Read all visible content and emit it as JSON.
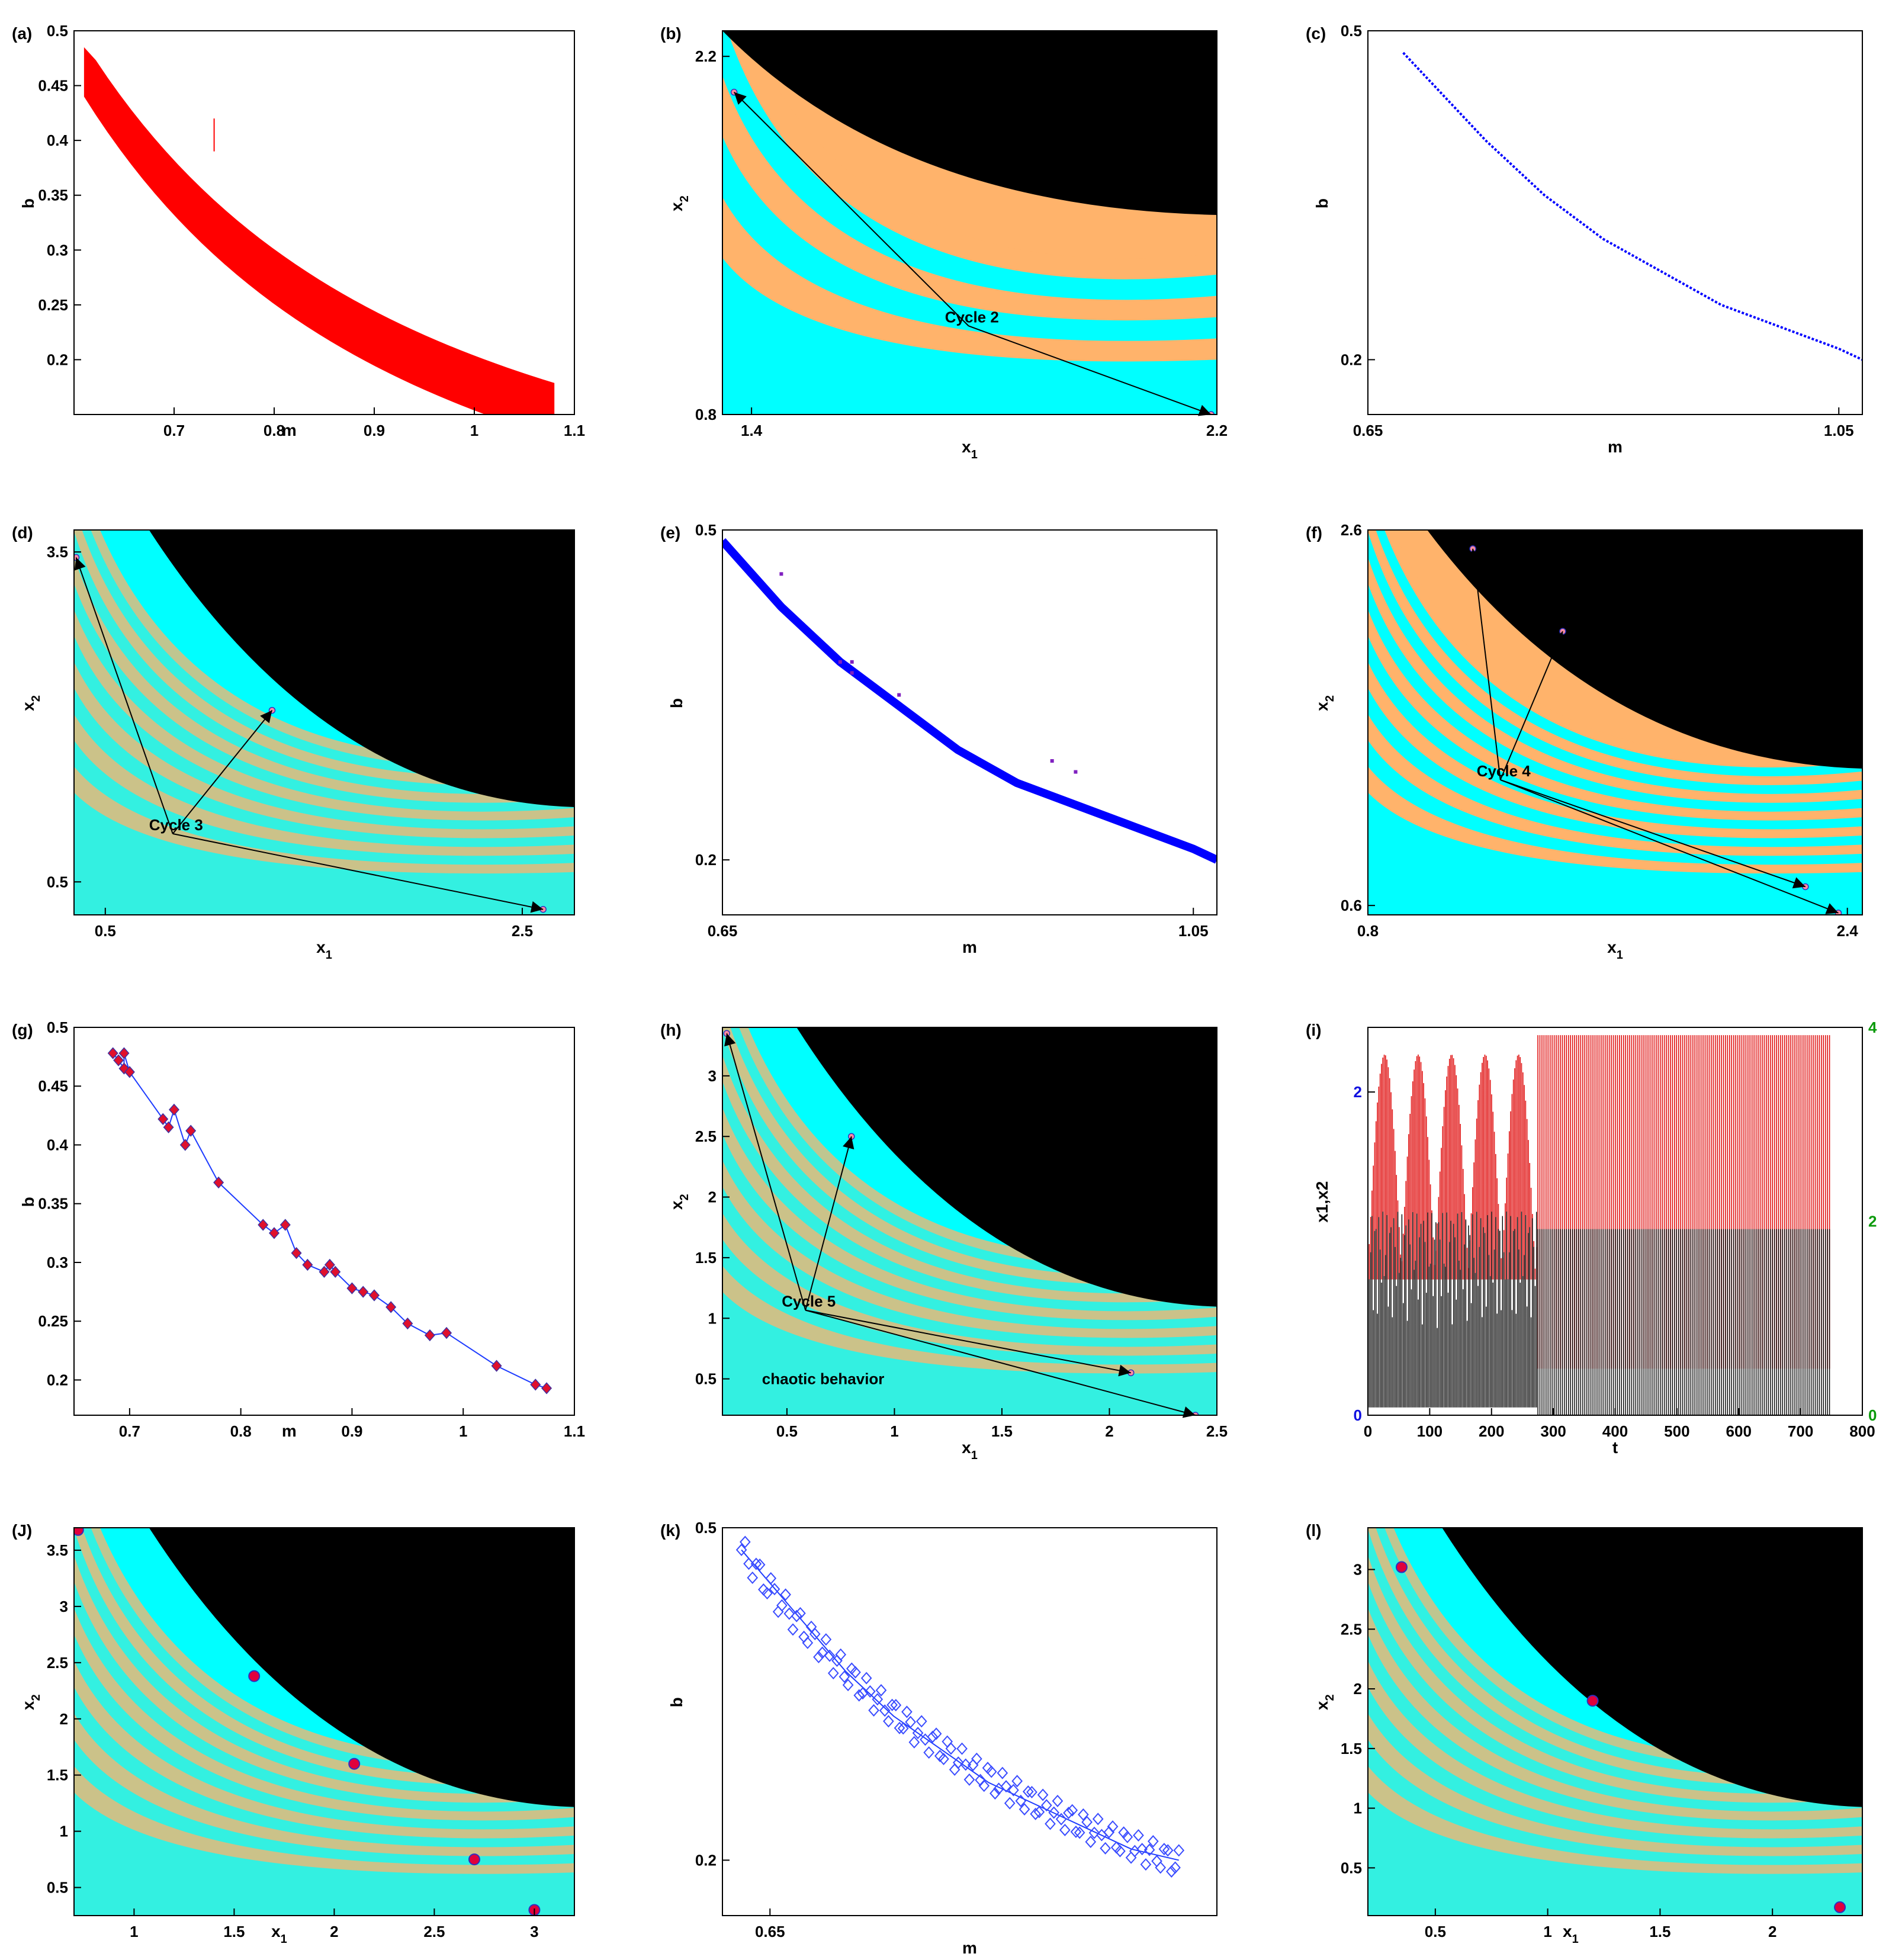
{
  "figure": {
    "panels": [
      {
        "id": "a",
        "tag": "(a)",
        "type": "region",
        "xlabel": "m",
        "ylabel": "b",
        "xticks": [
          "0.7",
          "0.8",
          "0.9",
          "1",
          "1.1"
        ],
        "xtickvals": [
          0.7,
          0.8,
          0.9,
          1,
          1.1
        ],
        "yticks": [
          "0.2",
          "0.25",
          "0.3",
          "0.35",
          "0.4",
          "0.45",
          "0.5"
        ],
        "ytickvals": [
          0.2,
          0.25,
          0.3,
          0.35,
          0.4,
          0.45,
          0.5
        ],
        "xlim": [
          0.6,
          1.1
        ],
        "ylim": [
          0.15,
          0.5
        ],
        "color": "#ff0000"
      },
      {
        "id": "b",
        "tag": "(b)",
        "type": "basin",
        "xlabel": "x1",
        "ylabel": "x2",
        "xticks": [
          "1.4",
          "2.2"
        ],
        "xtickvals": [
          1.4,
          2.2
        ],
        "yticks": [
          "0.8",
          "2.2"
        ],
        "ytickvals": [
          0.8,
          2.2
        ],
        "xlim": [
          1.35,
          2.2
        ],
        "ylim": [
          0.8,
          2.3
        ],
        "annotation": "Cycle 2",
        "points": [
          [
            1.37,
            2.06
          ],
          [
            2.19,
            0.8
          ]
        ]
      },
      {
        "id": "c",
        "tag": "(c)",
        "type": "curve",
        "xlabel": "m",
        "ylabel": "b",
        "xticks": [
          "0.65",
          "1.05"
        ],
        "xtickvals": [
          0.65,
          1.05
        ],
        "yticks": [
          "0.2",
          "0.5"
        ],
        "ytickvals": [
          0.2,
          0.5
        ],
        "xlim": [
          0.65,
          1.07
        ],
        "ylim": [
          0.15,
          0.5
        ],
        "color": "#0000ff"
      },
      {
        "id": "d",
        "tag": "(d)",
        "type": "basin",
        "xlabel": "x1",
        "ylabel": "x2",
        "xticks": [
          "0.5",
          "2.5"
        ],
        "xtickvals": [
          0.5,
          2.5
        ],
        "yticks": [
          "0.5",
          "3.5"
        ],
        "ytickvals": [
          0.5,
          3.5
        ],
        "xlim": [
          0.35,
          2.75
        ],
        "ylim": [
          0.2,
          3.7
        ],
        "annotation": "Cycle 3",
        "points": [
          [
            0.36,
            3.45
          ],
          [
            1.3,
            2.06
          ],
          [
            2.6,
            0.25
          ]
        ]
      },
      {
        "id": "e",
        "tag": "(e)",
        "type": "curve",
        "xlabel": "m",
        "ylabel": "b",
        "xticks": [
          "0.65",
          "1.05"
        ],
        "xtickvals": [
          0.65,
          1.05
        ],
        "yticks": [
          "0.2",
          "0.5"
        ],
        "ytickvals": [
          0.2,
          0.5
        ],
        "xlim": [
          0.65,
          1.07
        ],
        "ylim": [
          0.15,
          0.5
        ],
        "color": "#0000ff"
      },
      {
        "id": "f",
        "tag": "(f)",
        "type": "basin",
        "xlabel": "x1",
        "ylabel": "x2",
        "xticks": [
          "0.8",
          "2.4"
        ],
        "xtickvals": [
          0.8,
          2.4
        ],
        "yticks": [
          "0.6",
          "2.6"
        ],
        "ytickvals": [
          0.6,
          2.6
        ],
        "xlim": [
          0.8,
          2.45
        ],
        "ylim": [
          0.55,
          2.6
        ],
        "annotation": "Cycle 4",
        "points": [
          [
            1.15,
            2.5
          ],
          [
            1.45,
            2.06
          ],
          [
            2.26,
            0.7
          ],
          [
            2.37,
            0.56
          ]
        ]
      },
      {
        "id": "g",
        "tag": "(g)",
        "type": "markers",
        "xlabel": "m",
        "ylabel": "b",
        "xticks": [
          "0.7",
          "0.8",
          "0.9",
          "1",
          "1.1"
        ],
        "xtickvals": [
          0.7,
          0.8,
          0.9,
          1,
          1.1
        ],
        "yticks": [
          "0.2",
          "0.25",
          "0.3",
          "0.35",
          "0.4",
          "0.45",
          "0.5"
        ],
        "ytickvals": [
          0.2,
          0.25,
          0.3,
          0.35,
          0.4,
          0.45,
          0.5
        ],
        "xlim": [
          0.65,
          1.1
        ],
        "ylim": [
          0.17,
          0.5
        ]
      },
      {
        "id": "h",
        "tag": "(h)",
        "type": "basin",
        "xlabel": "x1",
        "ylabel": "x2",
        "xticks": [
          "0.5",
          "1",
          "1.5",
          "2",
          "2.5"
        ],
        "xtickvals": [
          0.5,
          1,
          1.5,
          2,
          2.5
        ],
        "yticks": [
          "0.5",
          "1",
          "1.5",
          "2",
          "2.5",
          "3"
        ],
        "ytickvals": [
          0.5,
          1,
          1.5,
          2,
          2.5,
          3
        ],
        "xlim": [
          0.2,
          2.5
        ],
        "ylim": [
          0.2,
          3.4
        ],
        "annotation": "Cycle 5",
        "annotation2": "chaotic behavior",
        "points": [
          [
            0.22,
            3.35
          ],
          [
            0.8,
            2.5
          ],
          [
            2.1,
            0.55
          ],
          [
            2.4,
            0.2
          ]
        ]
      },
      {
        "id": "i",
        "tag": "(i)",
        "type": "timeseries",
        "xlabel": "t",
        "ylabel": "x1,x2",
        "xticks": [
          "0",
          "100",
          "200",
          "300",
          "400",
          "500",
          "600",
          "700",
          "800"
        ],
        "xtickvals": [
          0,
          100,
          200,
          300,
          400,
          500,
          600,
          700,
          800
        ],
        "yticks": [
          "0",
          "2"
        ],
        "ytickvals": [
          0,
          2
        ],
        "y2ticks": [
          "0",
          "2",
          "4"
        ],
        "y2tickvals": [
          0,
          2,
          4
        ],
        "xlim": [
          0,
          800
        ],
        "ylim": [
          0,
          2.4
        ],
        "y2lim": [
          0,
          4
        ]
      },
      {
        "id": "J",
        "tag": "(J)",
        "type": "basin",
        "xlabel": "x1",
        "ylabel": "x2",
        "xticks": [
          "1",
          "1.5",
          "2",
          "2.5",
          "3"
        ],
        "xtickvals": [
          1,
          1.5,
          2,
          2.5,
          3
        ],
        "yticks": [
          "0.5",
          "1",
          "1.5",
          "2",
          "2.5",
          "3",
          "3.5"
        ],
        "ytickvals": [
          0.5,
          1,
          1.5,
          2,
          2.5,
          3,
          3.5
        ],
        "xlim": [
          0.7,
          3.2
        ],
        "ylim": [
          0.25,
          3.7
        ],
        "points": [
          [
            0.72,
            3.68
          ],
          [
            1.6,
            2.38
          ],
          [
            2.1,
            1.6
          ],
          [
            2.7,
            0.75
          ],
          [
            3.0,
            0.3
          ]
        ]
      },
      {
        "id": "k",
        "tag": "(k)",
        "type": "diamonds",
        "xlabel": "m",
        "ylabel": "b",
        "xticks": [
          "0.65"
        ],
        "xtickvals": [
          0.65
        ],
        "yticks": [
          "0.2",
          "0.5"
        ],
        "ytickvals": [
          0.2,
          0.5
        ],
        "xlim": [
          0.6,
          1.12
        ],
        "ylim": [
          0.15,
          0.5
        ]
      },
      {
        "id": "l",
        "tag": "(l)",
        "type": "basin",
        "xlabel": "x1",
        "ylabel": "x2",
        "xticks": [
          "0.5",
          "1",
          "1.5",
          "2"
        ],
        "xtickvals": [
          0.5,
          1,
          1.5,
          2
        ],
        "yticks": [
          "0.5",
          "1",
          "1.5",
          "2",
          "2.5",
          "3"
        ],
        "ytickvals": [
          0.5,
          1,
          1.5,
          2,
          2.5,
          3
        ],
        "xlim": [
          0.2,
          2.4
        ],
        "ylim": [
          0.1,
          3.35
        ],
        "points": [
          [
            0.35,
            3.02
          ],
          [
            1.2,
            1.9
          ],
          [
            2.3,
            0.17
          ]
        ]
      }
    ]
  },
  "chart_data": [
    {
      "type": "scatter",
      "panel": "a",
      "title": "(a)",
      "xlabel": "m",
      "ylabel": "b",
      "series": [
        {
          "name": "region",
          "x": [
            0.61,
            0.65,
            0.7,
            0.75,
            0.8,
            0.85,
            0.9,
            0.95,
            1.0,
            1.05,
            1.08
          ],
          "y": [
            0.47,
            0.44,
            0.4,
            0.36,
            0.32,
            0.29,
            0.26,
            0.23,
            0.21,
            0.19,
            0.18
          ]
        }
      ]
    },
    {
      "type": "scatter",
      "panel": "c",
      "title": "(c)",
      "xlabel": "m",
      "ylabel": "b",
      "series": [
        {
          "name": "curve",
          "x": [
            0.68,
            0.75,
            0.8,
            0.85,
            0.9,
            0.95,
            1.0,
            1.05,
            1.07
          ],
          "y": [
            0.48,
            0.4,
            0.35,
            0.31,
            0.28,
            0.25,
            0.23,
            0.21,
            0.2
          ]
        }
      ]
    },
    {
      "type": "scatter",
      "panel": "e",
      "title": "(e)",
      "xlabel": "m",
      "ylabel": "b",
      "series": [
        {
          "name": "curve",
          "x": [
            0.65,
            0.7,
            0.75,
            0.8,
            0.85,
            0.9,
            0.95,
            1.0,
            1.05,
            1.07
          ],
          "y": [
            0.49,
            0.43,
            0.38,
            0.34,
            0.3,
            0.27,
            0.25,
            0.23,
            0.21,
            0.2
          ]
        },
        {
          "name": "outliers",
          "x": [
            0.7,
            0.75,
            0.76,
            0.76,
            0.8,
            0.93,
            0.95
          ],
          "y": [
            0.46,
            0.38,
            0.38,
            0.37,
            0.35,
            0.29,
            0.28
          ]
        }
      ]
    },
    {
      "type": "line",
      "panel": "g",
      "title": "(g)",
      "xlabel": "m",
      "ylabel": "b",
      "series": [
        {
          "name": "cycle points",
          "x": [
            0.685,
            0.69,
            0.695,
            0.695,
            0.7,
            0.73,
            0.735,
            0.74,
            0.75,
            0.755,
            0.78,
            0.82,
            0.83,
            0.84,
            0.85,
            0.86,
            0.875,
            0.88,
            0.885,
            0.9,
            0.91,
            0.92,
            0.935,
            0.95,
            0.97,
            0.985,
            1.03,
            1.065,
            1.075
          ],
          "y": [
            0.478,
            0.472,
            0.465,
            0.478,
            0.462,
            0.422,
            0.415,
            0.43,
            0.4,
            0.412,
            0.368,
            0.332,
            0.325,
            0.332,
            0.308,
            0.298,
            0.292,
            0.298,
            0.292,
            0.278,
            0.275,
            0.272,
            0.262,
            0.248,
            0.238,
            0.24,
            0.212,
            0.196,
            0.193
          ]
        }
      ]
    },
    {
      "type": "line",
      "panel": "i",
      "title": "(i)",
      "xlabel": "t",
      "ylabel": "x1,x2",
      "series": [
        {
          "name": "x1",
          "x": [
            0,
            275,
            750
          ],
          "y": [
            1.6,
            1.6,
            1.85
          ]
        },
        {
          "name": "x2",
          "x": [
            0,
            275,
            750
          ],
          "y": [
            2.4,
            2.4,
            2.4
          ]
        }
      ]
    },
    {
      "type": "scatter",
      "panel": "k",
      "title": "(k)",
      "xlabel": "m",
      "ylabel": "b",
      "series": [
        {
          "name": "diamonds",
          "x": [
            0.62,
            0.68,
            0.73,
            0.78,
            0.83,
            0.88,
            0.93,
            0.98,
            1.03,
            1.08
          ],
          "y": [
            0.48,
            0.42,
            0.37,
            0.33,
            0.3,
            0.27,
            0.25,
            0.23,
            0.21,
            0.2
          ]
        }
      ]
    }
  ]
}
